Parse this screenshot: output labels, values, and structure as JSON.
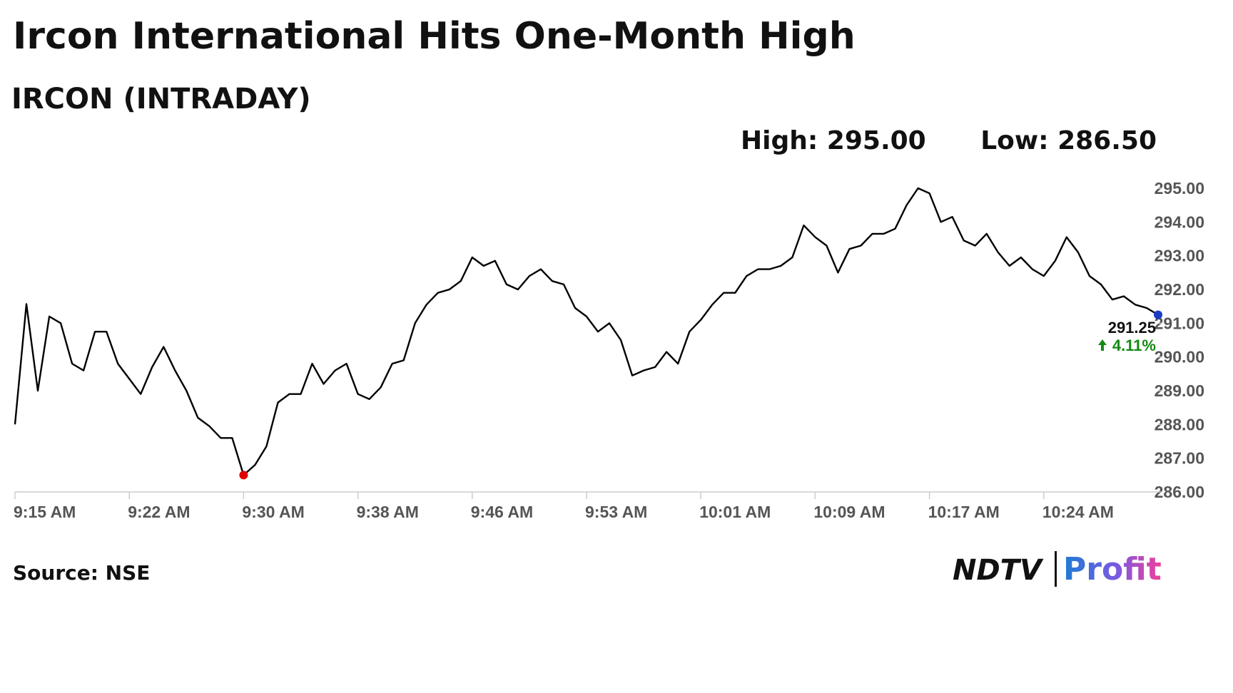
{
  "chart_data": {
    "type": "line",
    "title": "Ircon International Hits One-Month High",
    "subtitle": "IRCON (INTRADAY)",
    "high": {
      "value": 295,
      "label": "High: 295.00"
    },
    "low": {
      "value": 286.5,
      "label": "Low: 286.50"
    },
    "last": {
      "value": 291.25,
      "label": "291.25"
    },
    "change": {
      "value": 4.11,
      "label": "4.11%"
    },
    "source": "Source: NSE",
    "brand": {
      "name": "NDTV",
      "product": "Profit"
    },
    "color": "#000000",
    "low_marker_color": "#e00000",
    "last_marker_color": "#1a3cc8",
    "change_color": "#138a13",
    "categories": [
      "9:15 AM",
      null,
      null,
      null,
      null,
      null,
      null,
      null,
      null,
      null,
      "9:22 AM",
      null,
      null,
      null,
      null,
      null,
      null,
      null,
      null,
      null,
      "9:30 AM",
      null,
      null,
      null,
      null,
      null,
      null,
      null,
      null,
      null,
      "9:38 AM",
      null,
      null,
      null,
      null,
      null,
      null,
      null,
      null,
      null,
      "9:46 AM",
      null,
      null,
      null,
      null,
      null,
      null,
      null,
      null,
      null,
      "9:53 AM",
      null,
      null,
      null,
      null,
      null,
      null,
      null,
      null,
      null,
      "10:01 AM",
      null,
      null,
      null,
      null,
      null,
      null,
      null,
      null,
      null,
      "10:09 AM",
      null,
      null,
      null,
      null,
      null,
      null,
      null,
      null,
      null,
      "10:17 AM",
      null,
      null,
      null,
      null,
      null,
      null,
      null,
      null,
      null,
      "10:24 AM",
      null,
      null,
      null,
      null,
      null,
      null,
      null,
      null,
      null,
      null
    ],
    "values": [
      288.0,
      291.57,
      289.0,
      291.2,
      291.0,
      289.8,
      289.6,
      290.75,
      290.75,
      289.8,
      289.35,
      288.9,
      289.7,
      290.3,
      289.6,
      289.0,
      288.2,
      287.95,
      287.6,
      287.6,
      286.5,
      286.8,
      287.35,
      288.65,
      288.9,
      288.9,
      289.8,
      289.2,
      289.6,
      289.8,
      288.9,
      288.75,
      289.1,
      289.8,
      289.9,
      291.0,
      291.55,
      291.9,
      292.0,
      292.25,
      292.95,
      292.7,
      292.85,
      292.15,
      292.0,
      292.4,
      292.6,
      292.25,
      292.15,
      291.45,
      291.2,
      290.75,
      291.0,
      290.5,
      289.45,
      289.6,
      289.7,
      290.15,
      289.8,
      290.75,
      291.1,
      291.55,
      291.9,
      291.9,
      292.4,
      292.6,
      292.6,
      292.7,
      292.95,
      293.9,
      293.55,
      293.3,
      292.5,
      293.2,
      293.3,
      293.65,
      293.65,
      293.8,
      294.5,
      295.0,
      294.85,
      294.0,
      294.15,
      293.45,
      293.3,
      293.65,
      293.1,
      292.7,
      292.95,
      292.6,
      292.4,
      292.85,
      293.55,
      293.1,
      292.4,
      292.15,
      291.7,
      291.8,
      291.55,
      291.45,
      291.25
    ],
    "ylim": [
      286,
      295
    ],
    "yticks": [
      {
        "value": 286,
        "label": "286.00"
      },
      {
        "value": 287,
        "label": "287.00"
      },
      {
        "value": 288,
        "label": "288.00"
      },
      {
        "value": 289,
        "label": "289.00"
      },
      {
        "value": 290,
        "label": "290.00"
      },
      {
        "value": 291,
        "label": "291.00"
      },
      {
        "value": 292,
        "label": "292.00"
      },
      {
        "value": 293,
        "label": "293.00"
      },
      {
        "value": 294,
        "label": "294.00"
      },
      {
        "value": 295,
        "label": "295.00"
      }
    ],
    "grid": false
  }
}
